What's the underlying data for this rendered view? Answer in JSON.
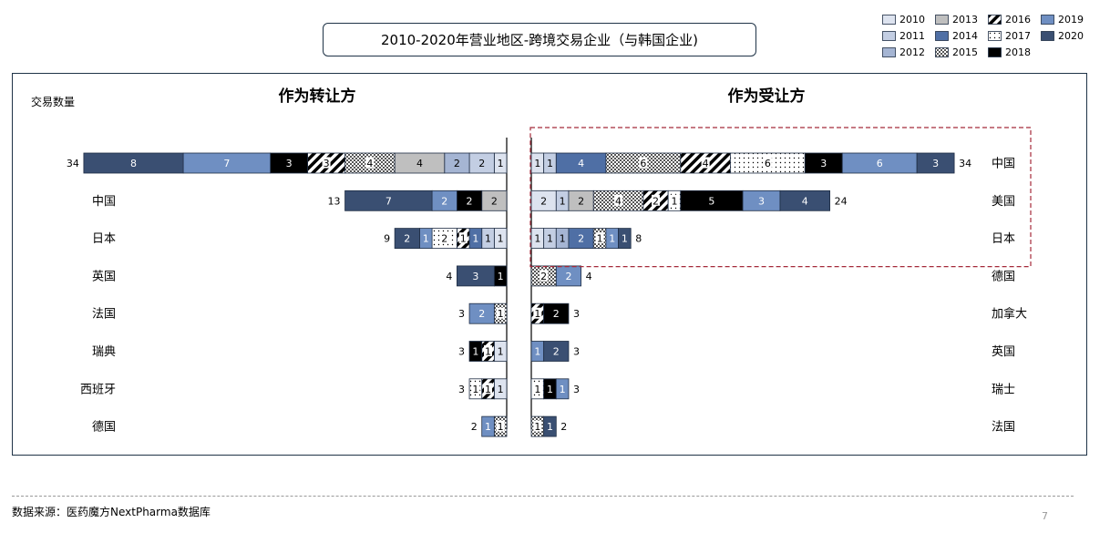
{
  "title": "2010-2020年营业地区-跨境交易企业（与韩国企业)",
  "source": "数据来源：医药魔方NextPharma数据库",
  "page_number": "7",
  "chart_data": {
    "type": "bar",
    "orientation": "horizontal",
    "stacked": true,
    "ylabel": "交易数量",
    "legend_position": "top-right",
    "years": [
      "2010",
      "2011",
      "2012",
      "2013",
      "2014",
      "2015",
      "2016",
      "2017",
      "2018",
      "2019",
      "2020"
    ],
    "year_styles": {
      "2010": {
        "fill": "#dde3ef"
      },
      "2011": {
        "fill": "#c3cee3"
      },
      "2012": {
        "fill": "#a5b5d3"
      },
      "2013": {
        "fill": "#bfbfbf"
      },
      "2014": {
        "fill": "#4f6fa5"
      },
      "2015": {
        "fill": "#c8c8c8",
        "pattern": "checker"
      },
      "2016": {
        "fill": "#ffffff",
        "pattern": "stripes"
      },
      "2017": {
        "fill": "#ffffff",
        "pattern": "dots"
      },
      "2018": {
        "fill": "#000000"
      },
      "2019": {
        "fill": "#6f8fc2"
      },
      "2020": {
        "fill": "#3a4f72"
      }
    },
    "panels": [
      {
        "title": "作为转让方",
        "direction": "left",
        "rows": [
          {
            "label": "美国",
            "total": 34,
            "segments": [
              {
                "year": "2010",
                "value": 1
              },
              {
                "year": "2011",
                "value": 2
              },
              {
                "year": "2012",
                "value": 2
              },
              {
                "year": "2013",
                "value": 4
              },
              {
                "year": "2015",
                "value": 4
              },
              {
                "year": "2016",
                "value": 3
              },
              {
                "year": "2018",
                "value": 3
              },
              {
                "year": "2019",
                "value": 7
              },
              {
                "year": "2020",
                "value": 8
              }
            ]
          },
          {
            "label": "中国",
            "total": 13,
            "segments": [
              {
                "year": "2013",
                "value": 2
              },
              {
                "year": "2018",
                "value": 2
              },
              {
                "year": "2019",
                "value": 2
              },
              {
                "year": "2020",
                "value": 7
              }
            ]
          },
          {
            "label": "日本",
            "total": 9,
            "segments": [
              {
                "year": "2010",
                "value": 1
              },
              {
                "year": "2011",
                "value": 1
              },
              {
                "year": "2014",
                "value": 1
              },
              {
                "year": "2016",
                "value": 1
              },
              {
                "year": "2017",
                "value": 2
              },
              {
                "year": "2019",
                "value": 1
              },
              {
                "year": "2020",
                "value": 2
              }
            ]
          },
          {
            "label": "英国",
            "total": 4,
            "segments": [
              {
                "year": "2018",
                "value": 1
              },
              {
                "year": "2020",
                "value": 3
              }
            ]
          },
          {
            "label": "法国",
            "total": 3,
            "segments": [
              {
                "year": "2015",
                "value": 1
              },
              {
                "year": "2019",
                "value": 2
              }
            ]
          },
          {
            "label": "瑞典",
            "total": 3,
            "segments": [
              {
                "year": "2010",
                "value": 1
              },
              {
                "year": "2016",
                "value": 1
              },
              {
                "year": "2018",
                "value": 1
              }
            ]
          },
          {
            "label": "西班牙",
            "total": 3,
            "segments": [
              {
                "year": "2010",
                "value": 1
              },
              {
                "year": "2016",
                "value": 1
              },
              {
                "year": "2017",
                "value": 1
              }
            ]
          },
          {
            "label": "德国",
            "total": 2,
            "segments": [
              {
                "year": "2015",
                "value": 1
              },
              {
                "year": "2019",
                "value": 1
              }
            ]
          }
        ]
      },
      {
        "title": "作为受让方",
        "direction": "right",
        "rows": [
          {
            "label": "中国",
            "total": 34,
            "segments": [
              {
                "year": "2010",
                "value": 1
              },
              {
                "year": "2011",
                "value": 1
              },
              {
                "year": "2014",
                "value": 4
              },
              {
                "year": "2015",
                "value": 6
              },
              {
                "year": "2016",
                "value": 4
              },
              {
                "year": "2017",
                "value": 6
              },
              {
                "year": "2018",
                "value": 3
              },
              {
                "year": "2019",
                "value": 6
              },
              {
                "year": "2020",
                "value": 3
              }
            ]
          },
          {
            "label": "美国",
            "total": 24,
            "segments": [
              {
                "year": "2010",
                "value": 2
              },
              {
                "year": "2011",
                "value": 1
              },
              {
                "year": "2013",
                "value": 2
              },
              {
                "year": "2015",
                "value": 4
              },
              {
                "year": "2016",
                "value": 2
              },
              {
                "year": "2017",
                "value": 1
              },
              {
                "year": "2018",
                "value": 5
              },
              {
                "year": "2019",
                "value": 3
              },
              {
                "year": "2020",
                "value": 4
              }
            ]
          },
          {
            "label": "日本",
            "total": 8,
            "segments": [
              {
                "year": "2010",
                "value": 1
              },
              {
                "year": "2011",
                "value": 1
              },
              {
                "year": "2012",
                "value": 1
              },
              {
                "year": "2014",
                "value": 2
              },
              {
                "year": "2015",
                "value": 1
              },
              {
                "year": "2019",
                "value": 1
              },
              {
                "year": "2020",
                "value": 1
              }
            ]
          },
          {
            "label": "德国",
            "total": 4,
            "segments": [
              {
                "year": "2015",
                "value": 2
              },
              {
                "year": "2019",
                "value": 2
              }
            ]
          },
          {
            "label": "加拿大",
            "total": 3,
            "segments": [
              {
                "year": "2016",
                "value": 1
              },
              {
                "year": "2018",
                "value": 2
              }
            ]
          },
          {
            "label": "英国",
            "total": 3,
            "segments": [
              {
                "year": "2019",
                "value": 1
              },
              {
                "year": "2020",
                "value": 2
              }
            ]
          },
          {
            "label": "瑞士",
            "total": 3,
            "segments": [
              {
                "year": "2017",
                "value": 1
              },
              {
                "year": "2018",
                "value": 1
              },
              {
                "year": "2019",
                "value": 1
              }
            ]
          },
          {
            "label": "法国",
            "total": 2,
            "segments": [
              {
                "year": "2015",
                "value": 1
              },
              {
                "year": "2020",
                "value": 1
              }
            ]
          }
        ]
      }
    ],
    "highlight": {
      "panel": 1,
      "rows": [
        0,
        1,
        2
      ],
      "style": "dashed",
      "color": "#a52a3a"
    }
  }
}
